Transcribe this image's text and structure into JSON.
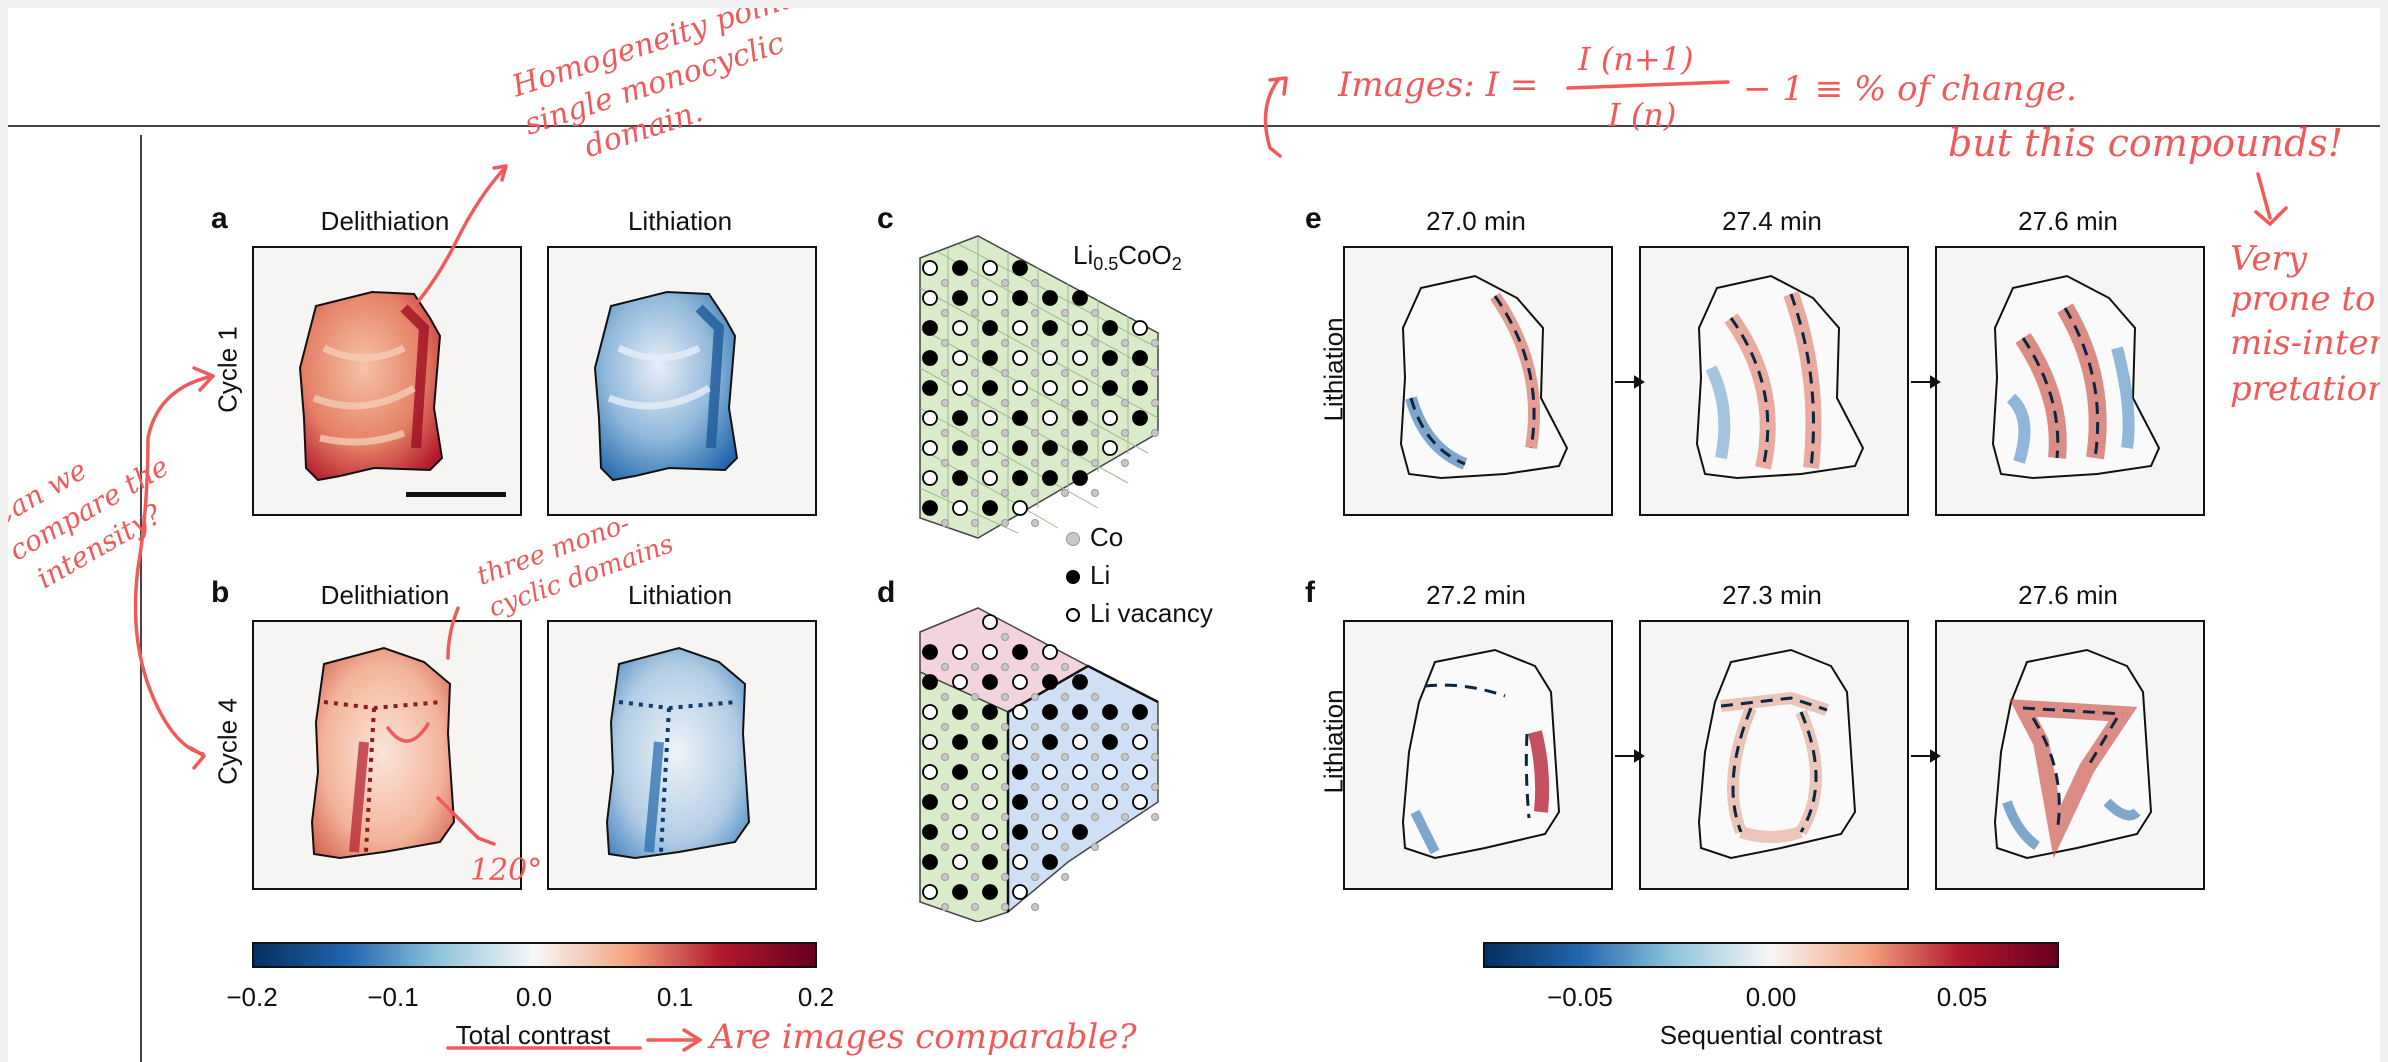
{
  "panels": {
    "a": {
      "letter": "a",
      "col1": "Delithiation",
      "col2": "Lithiation",
      "row": "Cycle 1"
    },
    "b": {
      "letter": "b",
      "col1": "Delithiation",
      "col2": "Lithiation",
      "row": "Cycle 4"
    },
    "c": {
      "letter": "c",
      "formula_main": "Li",
      "formula_sub": "0.5",
      "formula_rest": "CoO",
      "formula_sub2": "2"
    },
    "d": {
      "letter": "d"
    },
    "e": {
      "letter": "e",
      "times": [
        "27.0 min",
        "27.4 min",
        "27.6 min"
      ],
      "row": "Lithiation"
    },
    "f": {
      "letter": "f",
      "times": [
        "27.2 min",
        "27.3 min",
        "27.6 min"
      ],
      "row": "Lithiation"
    }
  },
  "legend": {
    "co": "Co",
    "li": "Li",
    "vacancy": "Li vacancy"
  },
  "colorbar_left": {
    "label": "Total contrast",
    "ticks": [
      "−0.2",
      "−0.1",
      "0.0",
      "0.1",
      "0.2"
    ],
    "min": -0.2,
    "max": 0.2
  },
  "colorbar_right": {
    "label": "Sequential contrast",
    "ticks": [
      "−0.05",
      "0.00",
      "0.05"
    ]
  },
  "annotations": {
    "top_left": [
      "Homogeneity points to",
      "single monocyclic",
      "domain."
    ],
    "formula": "Images: I = I(n+1)/I(n) − 1 ≡ % of change.",
    "formula_left": "Images: I =",
    "formula_num": "I (n+1)",
    "formula_den": "I (n)",
    "formula_right": "− 1  ≡  % of change.",
    "compounds": "but this compounds!",
    "right_side": [
      "Very",
      "prone to",
      "mis-inter-",
      "pretations"
    ],
    "left_side": [
      "Can we",
      "compare the",
      "intensity?"
    ],
    "three_domains": [
      "three mono-",
      "cyclic domains"
    ],
    "angle": "120°",
    "comparable": "Are images comparable?"
  },
  "colors": {
    "red": "#b2182b",
    "blue": "#2166ac",
    "annotation": "#f05a5a",
    "hex_green": "#d9ebc9",
    "hex_pink": "#f3d3dc",
    "hex_blue": "#cfdff5"
  }
}
